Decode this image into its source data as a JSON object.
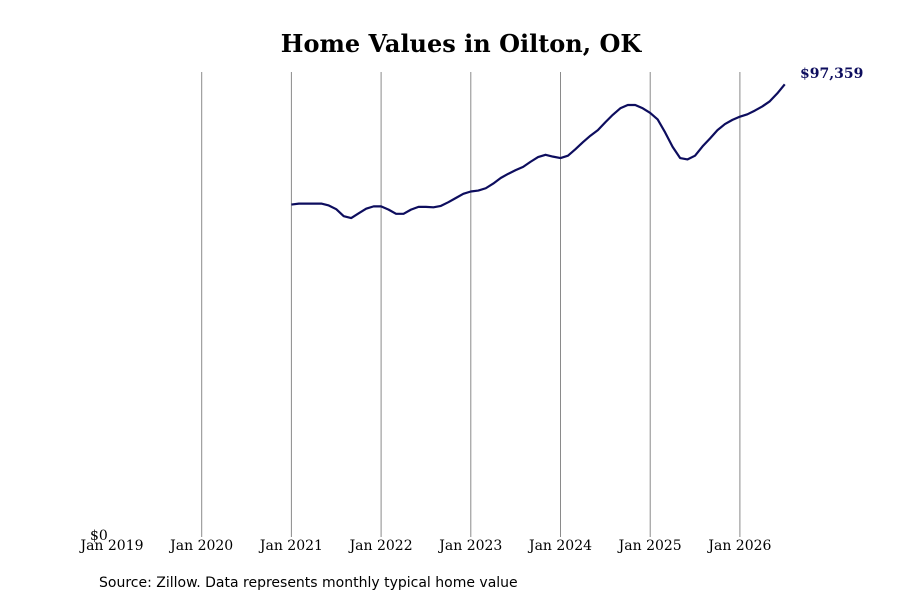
{
  "chart_data": {
    "type": "line",
    "title": "Home Values in Oilton, OK",
    "xlabel": "",
    "ylabel": "",
    "x_ticks": [
      "Jan 2019",
      "Jan 2020",
      "Jan 2021",
      "Jan 2022",
      "Jan 2023",
      "Jan 2024",
      "Jan 2025",
      "Jan 2026"
    ],
    "y_ticks": [
      {
        "value": 0,
        "label": "$0"
      }
    ],
    "ylim": [
      0,
      100000
    ],
    "xlim": [
      "2019-01",
      "2026-08"
    ],
    "grid": "vertical",
    "line_color": "#0d0d5e",
    "series": [
      {
        "points": [
          [
            "2021-01",
            71500
          ],
          [
            "2021-02",
            71700
          ],
          [
            "2021-03",
            71700
          ],
          [
            "2021-04",
            71700
          ],
          [
            "2021-05",
            71700
          ],
          [
            "2021-06",
            71300
          ],
          [
            "2021-07",
            70500
          ],
          [
            "2021-08",
            69000
          ],
          [
            "2021-09",
            68600
          ],
          [
            "2021-10",
            69600
          ],
          [
            "2021-11",
            70600
          ],
          [
            "2021-12",
            71100
          ],
          [
            "2022-01",
            71100
          ],
          [
            "2022-02",
            70400
          ],
          [
            "2022-03",
            69500
          ],
          [
            "2022-04",
            69500
          ],
          [
            "2022-05",
            70400
          ],
          [
            "2022-06",
            71000
          ],
          [
            "2022-07",
            71000
          ],
          [
            "2022-08",
            70900
          ],
          [
            "2022-09",
            71200
          ],
          [
            "2022-10",
            72000
          ],
          [
            "2022-11",
            72900
          ],
          [
            "2022-12",
            73800
          ],
          [
            "2023-01",
            74300
          ],
          [
            "2023-02",
            74500
          ],
          [
            "2023-03",
            75000
          ],
          [
            "2023-04",
            76000
          ],
          [
            "2023-05",
            77200
          ],
          [
            "2023-06",
            78100
          ],
          [
            "2023-07",
            78900
          ],
          [
            "2023-08",
            79600
          ],
          [
            "2023-09",
            80700
          ],
          [
            "2023-10",
            81700
          ],
          [
            "2023-11",
            82200
          ],
          [
            "2023-12",
            81800
          ],
          [
            "2024-01",
            81500
          ],
          [
            "2024-02",
            82000
          ],
          [
            "2024-03",
            83400
          ],
          [
            "2024-04",
            84900
          ],
          [
            "2024-05",
            86300
          ],
          [
            "2024-06",
            87500
          ],
          [
            "2024-07",
            89200
          ],
          [
            "2024-08",
            90800
          ],
          [
            "2024-09",
            92200
          ],
          [
            "2024-10",
            92900
          ],
          [
            "2024-11",
            92900
          ],
          [
            "2024-12",
            92200
          ],
          [
            "2025-01",
            91200
          ],
          [
            "2025-02",
            89800
          ],
          [
            "2025-03",
            87000
          ],
          [
            "2025-04",
            83900
          ],
          [
            "2025-05",
            81500
          ],
          [
            "2025-06",
            81200
          ],
          [
            "2025-07",
            82000
          ],
          [
            "2025-08",
            84000
          ],
          [
            "2025-09",
            85700
          ],
          [
            "2025-10",
            87500
          ],
          [
            "2025-11",
            88800
          ],
          [
            "2025-12",
            89700
          ],
          [
            "2026-01",
            90400
          ],
          [
            "2026-02",
            90900
          ],
          [
            "2026-03",
            91700
          ],
          [
            "2026-04",
            92600
          ],
          [
            "2026-05",
            93700
          ],
          [
            "2026-06",
            95400
          ],
          [
            "2026-07",
            97359
          ]
        ]
      }
    ],
    "end_label": "$97,359",
    "source": "Source: Zillow. Data represents monthly typical home value"
  }
}
